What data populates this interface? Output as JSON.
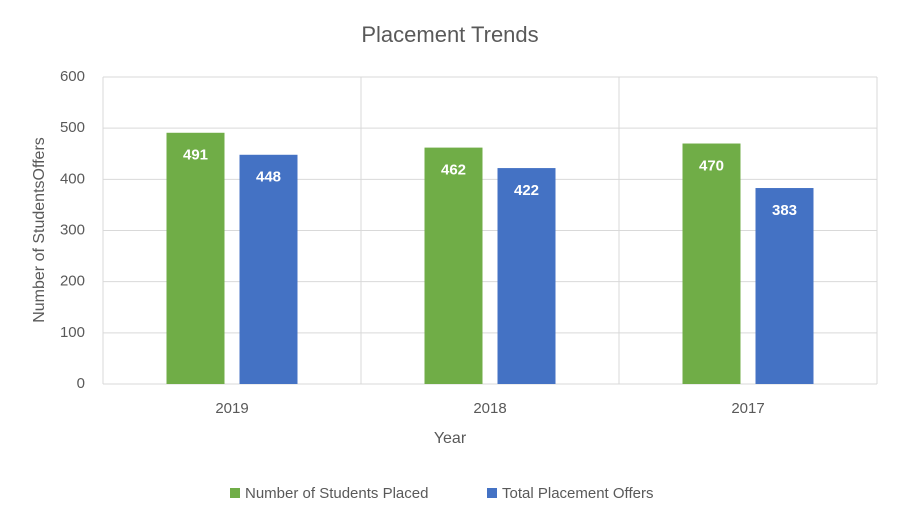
{
  "chart_data": {
    "type": "bar",
    "title": "Placement Trends",
    "x_label": "Year",
    "y_label": "Number of StudentsOffers",
    "categories": [
      "2019",
      "2018",
      "2017"
    ],
    "series": [
      {
        "name": "Number of Students Placed",
        "color": "#70ad47",
        "values": [
          491,
          462,
          470
        ]
      },
      {
        "name": "Total Placement Offers",
        "color": "#4472c4",
        "values": [
          448,
          422,
          383
        ]
      }
    ],
    "ylim": [
      0,
      600
    ],
    "yticks": [
      0,
      100,
      200,
      300,
      400,
      500,
      600
    ],
    "grid": true,
    "legend": "bottom"
  }
}
